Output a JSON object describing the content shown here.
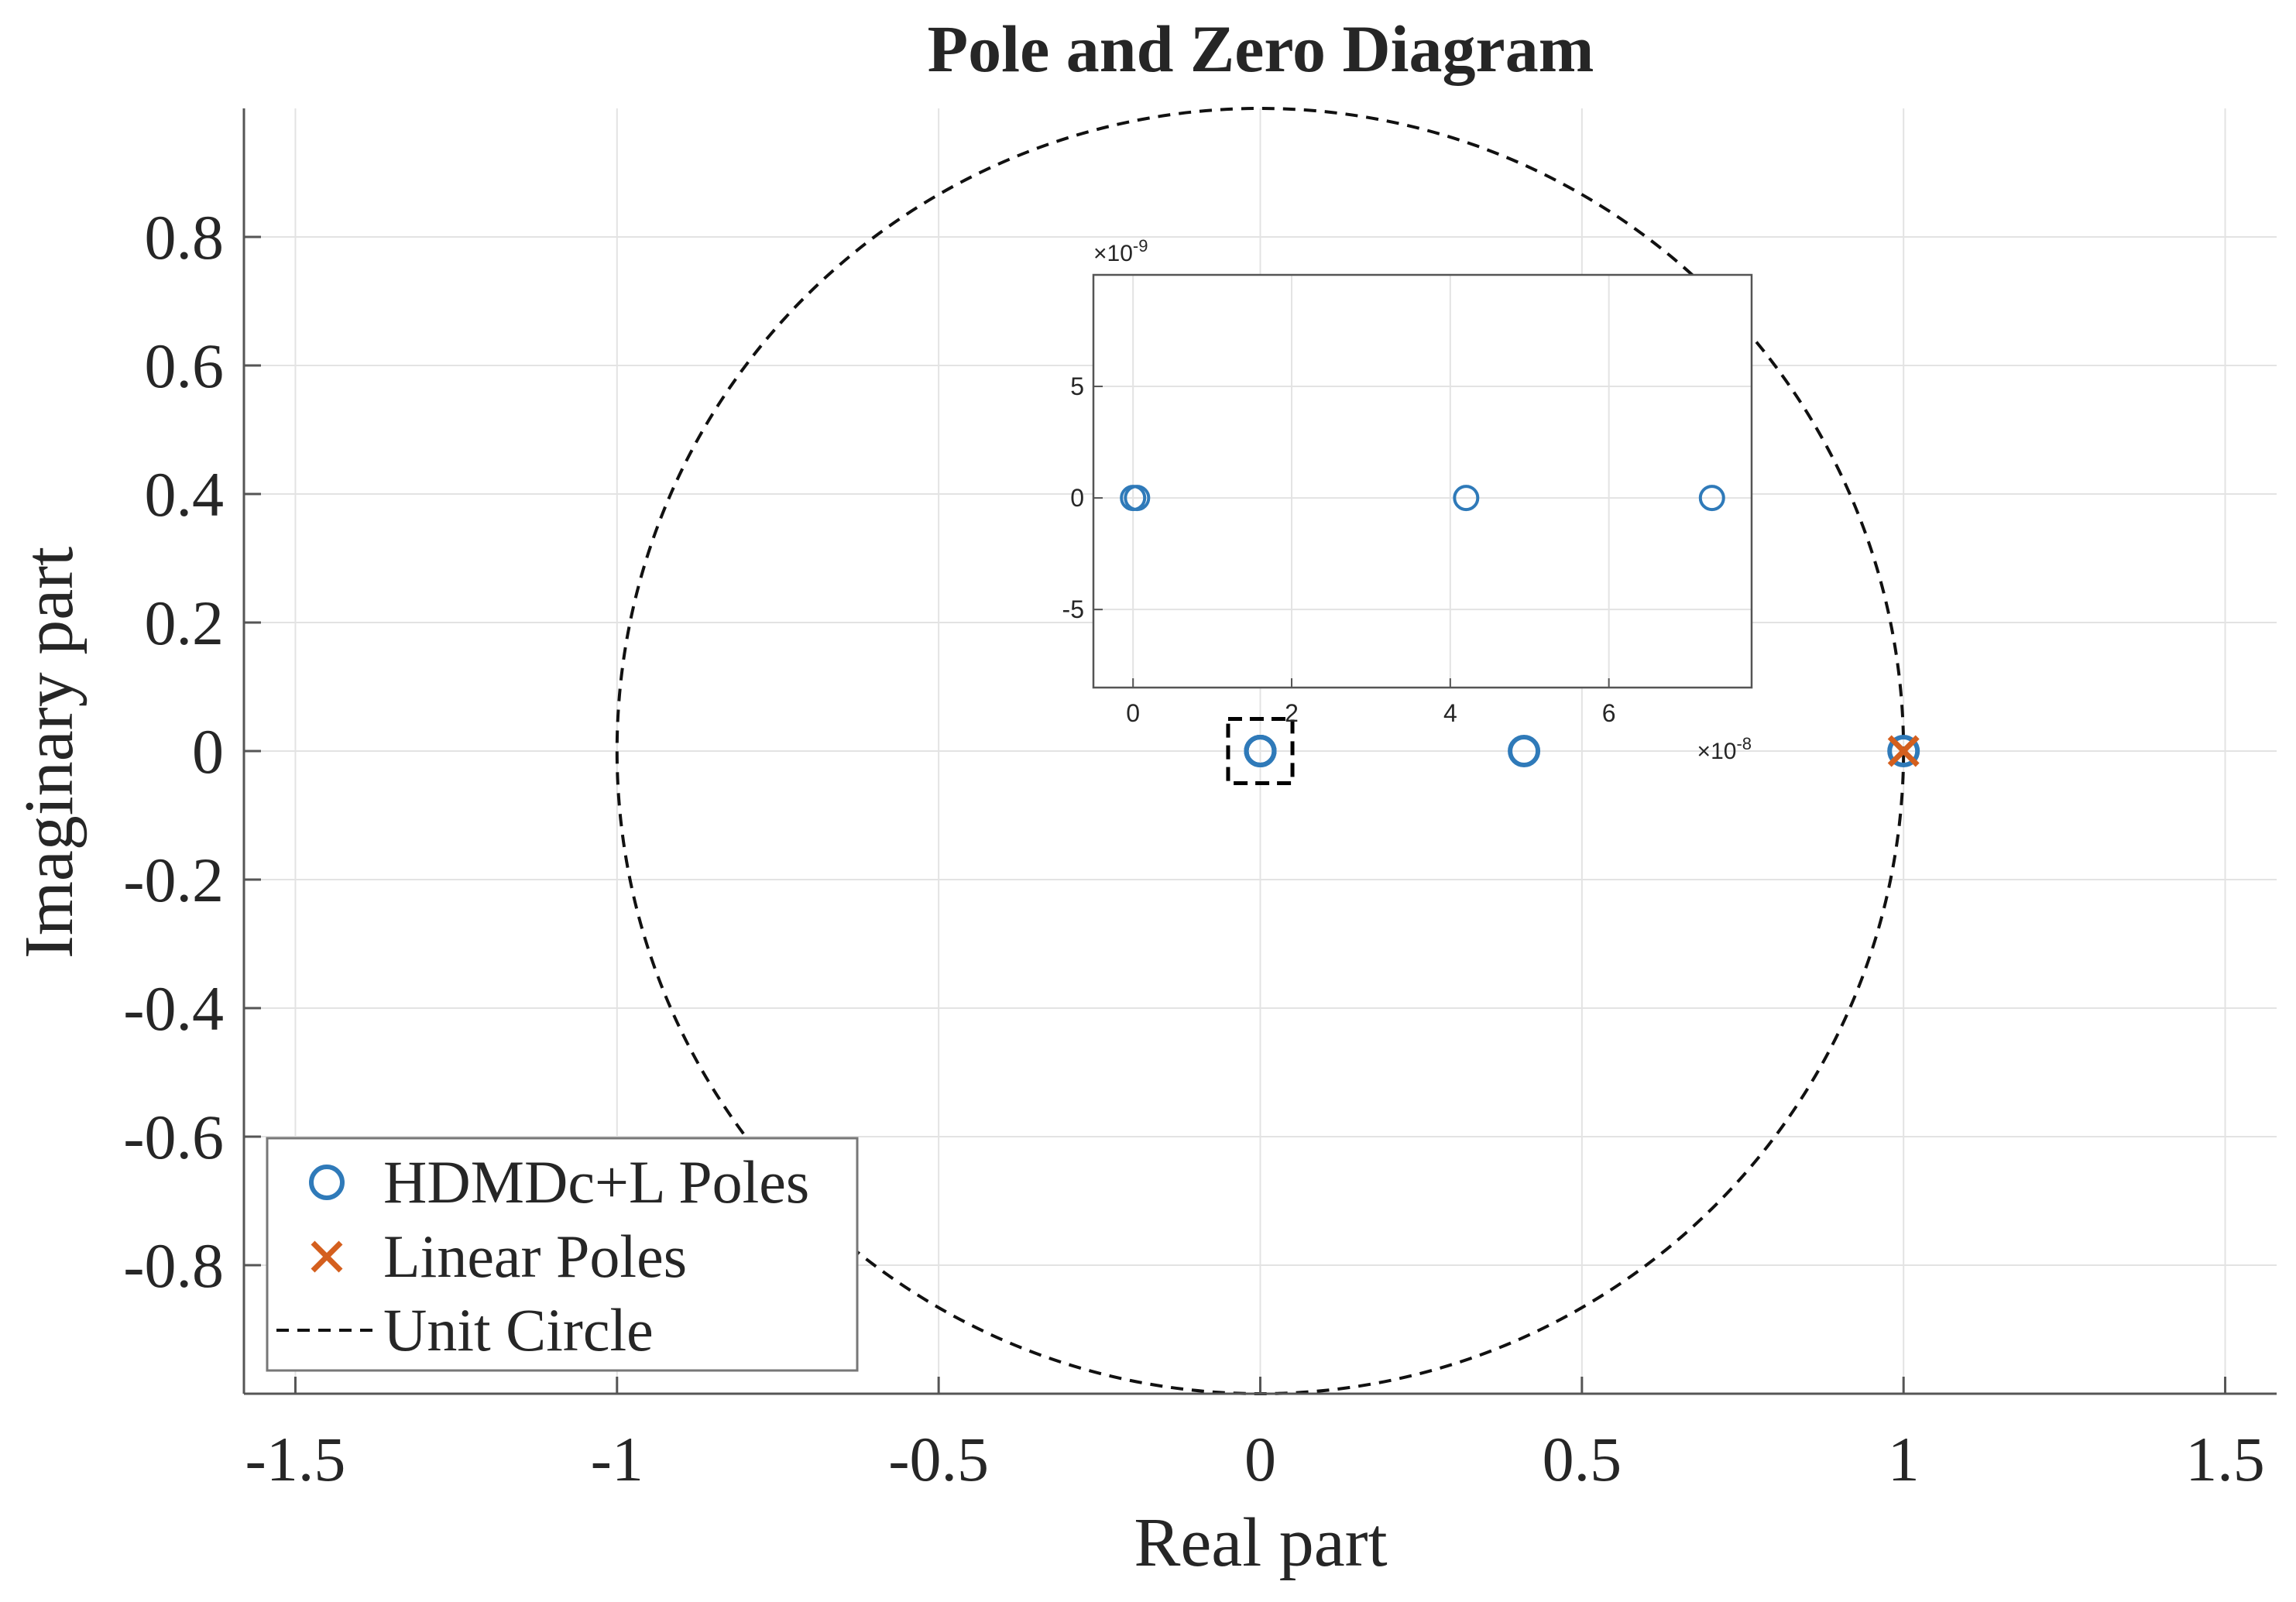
{
  "chart_data": {
    "type": "scatter",
    "title": "Pole and Zero Diagram",
    "xlabel": "Real part",
    "ylabel": "Imaginary part",
    "xlim": [
      -1.58,
      1.58
    ],
    "ylim": [
      -1.0,
      1.0
    ],
    "x_ticks": [
      -1.5,
      -1,
      -0.5,
      0,
      0.5,
      1,
      1.5
    ],
    "x_tick_labels": [
      "-1.5",
      "-1",
      "-0.5",
      "0",
      "0.5",
      "1",
      "1.5"
    ],
    "y_ticks": [
      -0.8,
      -0.6,
      -0.4,
      -0.2,
      0,
      0.2,
      0.4,
      0.6,
      0.8
    ],
    "y_tick_labels": [
      "-0.8",
      "-0.6",
      "-0.4",
      "-0.2",
      "0",
      "0.2",
      "0.4",
      "0.6",
      "0.8"
    ],
    "grid": true,
    "legend_position": "bottom-left",
    "colors": {
      "hdmd": "#2f7ab9",
      "linear": "#d45f1e",
      "circle": "#111111",
      "grid": "#e3e3e3",
      "axis": "#555555"
    },
    "series": [
      {
        "name": "HDMDc+L Poles",
        "marker": "circle",
        "points": [
          [
            0.0,
            0.0
          ],
          [
            0.0,
            0.0
          ],
          [
            0.0,
            0.0
          ],
          [
            0.0,
            0.0
          ],
          [
            0.41,
            0.0
          ],
          [
            1.0,
            0.0
          ]
        ]
      },
      {
        "name": "Linear Poles",
        "marker": "x",
        "points": [
          [
            1.0,
            0.0
          ]
        ]
      },
      {
        "name": "Unit Circle",
        "marker": "dashed-line",
        "radius": 1
      }
    ],
    "zoom_box": {
      "x": [
        -0.05,
        0.05
      ],
      "y": [
        -0.05,
        0.05
      ]
    },
    "inset": {
      "x_exponent_label": "×10",
      "x_exponent": "-8",
      "y_exponent_label": "×10",
      "y_exponent": "-9",
      "xlim": [
        -0.5,
        7.8
      ],
      "ylim": [
        -8.5,
        10
      ],
      "x_ticks": [
        0,
        2,
        4,
        6
      ],
      "x_tick_labels": [
        "0",
        "2",
        "4",
        "6"
      ],
      "y_ticks": [
        -5,
        0,
        5
      ],
      "y_tick_labels": [
        "-5",
        "0",
        "5"
      ],
      "points": [
        [
          0.0,
          0.0
        ],
        [
          0.05,
          0.0
        ],
        [
          4.2,
          0.0
        ],
        [
          7.3,
          0.0
        ]
      ]
    }
  }
}
